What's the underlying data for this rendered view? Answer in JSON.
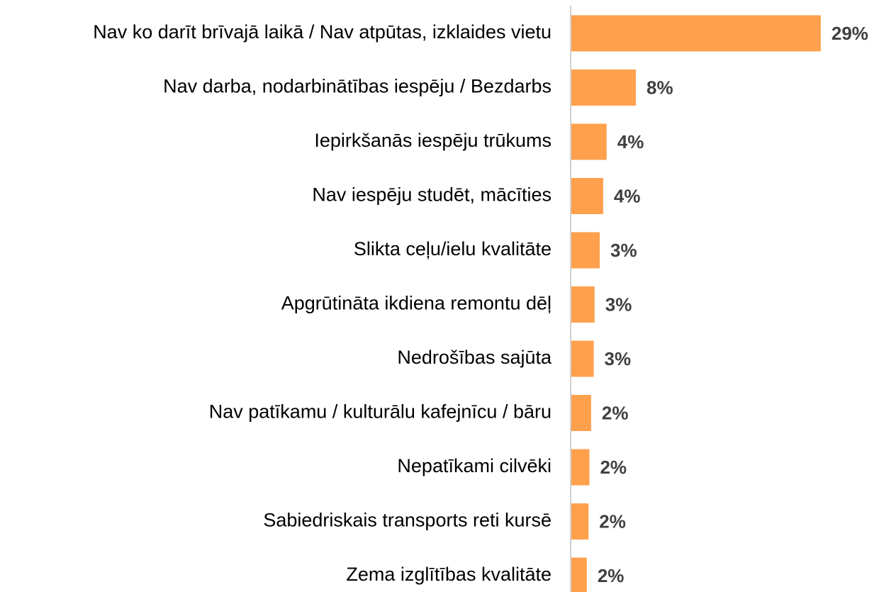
{
  "chart_data": {
    "type": "bar",
    "orientation": "horizontal",
    "categories": [
      "Nav ko darīt brīvajā laikā / Nav atpūtas, izklaides vietu",
      "Nav darba, nodarbinātības iespēju / Bezdarbs",
      "Iepirkšanās iespēju trūkums",
      "Nav iespēju studēt, mācīties",
      "Slikta ceļu/ielu kvalitāte",
      "Apgrūtināta ikdiena remontu dēļ",
      "Nedrošības sajūta",
      "Nav patīkamu / kulturālu kafejnīcu / bāru",
      "Nepatīkami cilvēki",
      "Sabiedriskais transports reti kursē",
      "Zema izglītības kvalitāte"
    ],
    "values": [
      29.0,
      7.5,
      4.1,
      3.7,
      3.3,
      2.7,
      2.6,
      2.3,
      2.1,
      2.0,
      1.8
    ],
    "value_labels": [
      "29%",
      "8%",
      "4%",
      "4%",
      "3%",
      "3%",
      "3%",
      "2%",
      "2%",
      "2%",
      "2%"
    ],
    "color": "#ffa04d",
    "xlim": [
      0,
      30
    ]
  }
}
